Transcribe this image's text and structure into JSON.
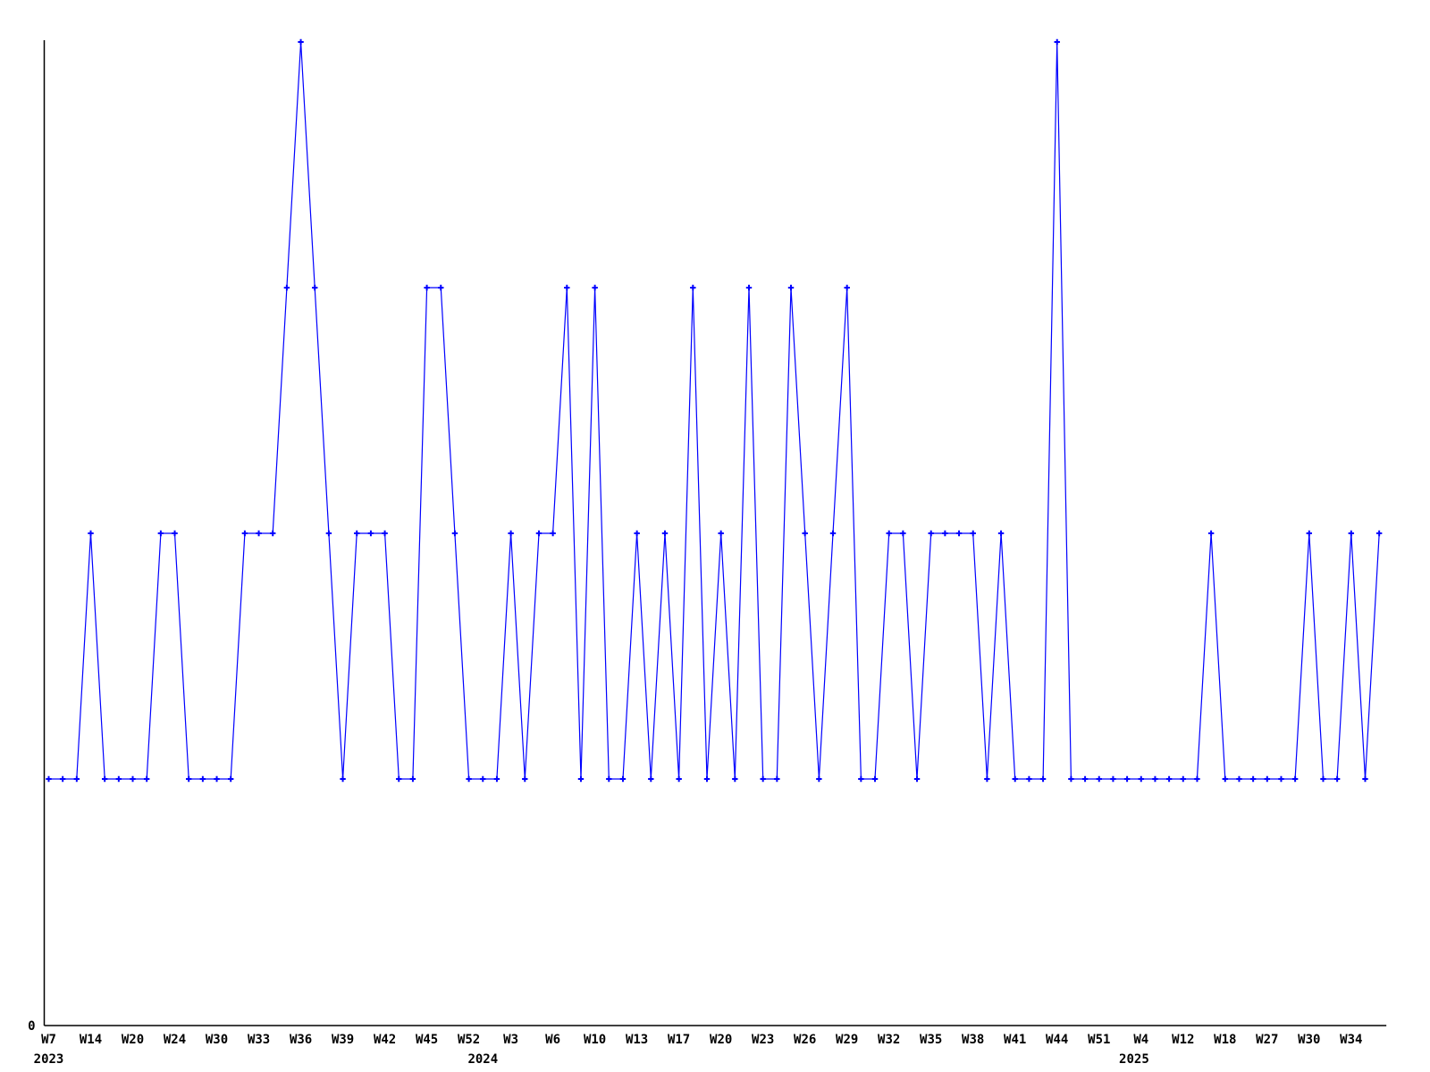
{
  "chart_data": {
    "type": "line",
    "line_color": "#0000ff",
    "axis_color": "#000000",
    "grid": false,
    "legend": false,
    "y_origin_label": "0",
    "ylim": [
      0,
      4.02
    ],
    "values": [
      1,
      1,
      1,
      2,
      1,
      1,
      1,
      1,
      2,
      2,
      1,
      1,
      1,
      1,
      2,
      2,
      2,
      3,
      4,
      3,
      2,
      1,
      2,
      2,
      2,
      1,
      1,
      3,
      3,
      2,
      1,
      1,
      1,
      2,
      1,
      2,
      2,
      3,
      1,
      3,
      1,
      1,
      2,
      1,
      2,
      1,
      3,
      1,
      2,
      1,
      3,
      1,
      1,
      3,
      2,
      1,
      2,
      3,
      1,
      1,
      2,
      2,
      1,
      2,
      2,
      2,
      2,
      1,
      2,
      1,
      1,
      1,
      4,
      1,
      1,
      1,
      1,
      1,
      1,
      1,
      1,
      1,
      1,
      2,
      1,
      1,
      1,
      1,
      1,
      1,
      2,
      1,
      1,
      2,
      1,
      2
    ],
    "x_tick_every": 3,
    "x_tick_labels": [
      "W7",
      "W14",
      "W20",
      "W24",
      "W30",
      "W33",
      "W36",
      "W39",
      "W42",
      "W45",
      "W52",
      "W3",
      "W6",
      "W10",
      "W13",
      "W17",
      "W20",
      "W23",
      "W26",
      "W29",
      "W32",
      "W35",
      "W38",
      "W41",
      "W44",
      "W51",
      "W4",
      "W12",
      "W18",
      "W27",
      "W30",
      "W34"
    ],
    "year_labels": [
      {
        "label": "2023",
        "point_index": 0
      },
      {
        "label": "2024",
        "point_index": 31
      },
      {
        "label": "2025",
        "point_index": 77.5
      }
    ]
  }
}
